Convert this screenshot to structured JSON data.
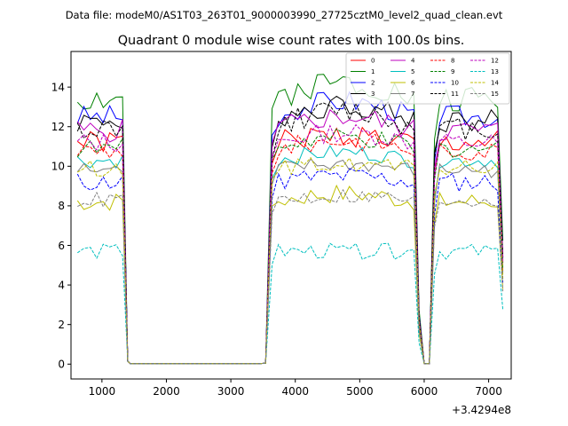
{
  "header": {
    "data_file": "Data file: modeM0/AS1T03_263T01_9000003990_27725cztM0_level2_quad_clean.evt"
  },
  "chart_data": {
    "type": "line",
    "title": "Quadrant 0 module wise count rates with 100.0s bins.",
    "xlabel": "",
    "ylabel": "",
    "x_offset_label": "+3.4294e8",
    "xlim": [
      520,
      7350
    ],
    "ylim": [
      -0.75,
      15.8
    ],
    "xticks": [
      1000,
      2000,
      3000,
      4000,
      5000,
      6000,
      7000
    ],
    "xtick_labels": [
      "1000",
      "2000",
      "3000",
      "4000",
      "5000",
      "6000",
      "7000"
    ],
    "yticks": [
      0,
      2,
      4,
      6,
      8,
      10,
      12,
      14
    ],
    "ytick_labels": [
      "0",
      "2",
      "4",
      "6",
      "8",
      "10",
      "12",
      "14"
    ],
    "x": [
      620,
      720,
      820,
      920,
      1020,
      1120,
      1220,
      1320,
      1360,
      1400,
      1440,
      1540,
      1640,
      1740,
      1840,
      1940,
      2040,
      2140,
      2240,
      2340,
      2440,
      2540,
      2640,
      2740,
      2840,
      2940,
      3040,
      3140,
      3240,
      3340,
      3440,
      3540,
      3640,
      3740,
      3840,
      3940,
      4040,
      4140,
      4240,
      4340,
      4440,
      4540,
      4640,
      4740,
      4840,
      4940,
      5040,
      5140,
      5240,
      5340,
      5440,
      5540,
      5640,
      5740,
      5840,
      5920,
      6000,
      6080,
      6160,
      6240,
      6340,
      6440,
      6540,
      6640,
      6740,
      6840,
      6940,
      7040,
      7140,
      7220
    ],
    "legend": {
      "placement": "top-right",
      "columns": 4
    },
    "series": [
      {
        "name": "0",
        "color": "#ff0000",
        "dash": "solid",
        "base": 11.2,
        "amp": 0.6,
        "drift": 0.35,
        "seed": 1
      },
      {
        "name": "1",
        "color": "#008000",
        "dash": "solid",
        "base": 13.4,
        "amp": 0.7,
        "drift": 0.9,
        "seed": 2
      },
      {
        "name": "2",
        "color": "#0000ff",
        "dash": "solid",
        "base": 12.5,
        "amp": 0.6,
        "drift": 0.8,
        "seed": 3
      },
      {
        "name": "3",
        "color": "#000000",
        "dash": "solid",
        "base": 12.3,
        "amp": 0.6,
        "drift": 0.8,
        "seed": 4
      },
      {
        "name": "4",
        "color": "#bf00bf",
        "dash": "solid",
        "base": 11.8,
        "amp": 0.6,
        "drift": 0.7,
        "seed": 5
      },
      {
        "name": "5",
        "color": "#00bfbf",
        "dash": "solid",
        "base": 10.3,
        "amp": 0.4,
        "drift": 0.4,
        "seed": 6
      },
      {
        "name": "6",
        "color": "#bfbf00",
        "dash": "solid",
        "base": 8.2,
        "amp": 0.5,
        "drift": 0.4,
        "seed": 7
      },
      {
        "name": "7",
        "color": "#808080",
        "dash": "solid",
        "base": 9.8,
        "amp": 0.4,
        "drift": 0.3,
        "seed": 8
      },
      {
        "name": "8",
        "color": "#ff0000",
        "dash": "dashed",
        "base": 10.8,
        "amp": 0.5,
        "drift": 0.5,
        "seed": 9
      },
      {
        "name": "9",
        "color": "#008000",
        "dash": "dashed",
        "base": 10.9,
        "amp": 0.5,
        "drift": 0.5,
        "seed": 10
      },
      {
        "name": "10",
        "color": "#0000ff",
        "dash": "dashed",
        "base": 9.2,
        "amp": 0.5,
        "drift": 0.3,
        "seed": 11
      },
      {
        "name": "11",
        "color": "#000000",
        "dash": "dashed",
        "base": 11.9,
        "amp": 0.6,
        "drift": 0.9,
        "seed": 12
      },
      {
        "name": "12",
        "color": "#bf00bf",
        "dash": "dashed",
        "base": 11.2,
        "amp": 0.5,
        "drift": 0.5,
        "seed": 13
      },
      {
        "name": "13",
        "color": "#00bfbf",
        "dash": "dashed",
        "base": 5.7,
        "amp": 0.4,
        "drift": 0.0,
        "seed": 14
      },
      {
        "name": "14",
        "color": "#bfbf00",
        "dash": "dashed",
        "base": 9.9,
        "amp": 0.4,
        "drift": 0.2,
        "seed": 15
      },
      {
        "name": "15",
        "color": "#808080",
        "dash": "dashed",
        "base": 8.3,
        "amp": 0.4,
        "drift": 0.2,
        "seed": 16
      }
    ]
  }
}
